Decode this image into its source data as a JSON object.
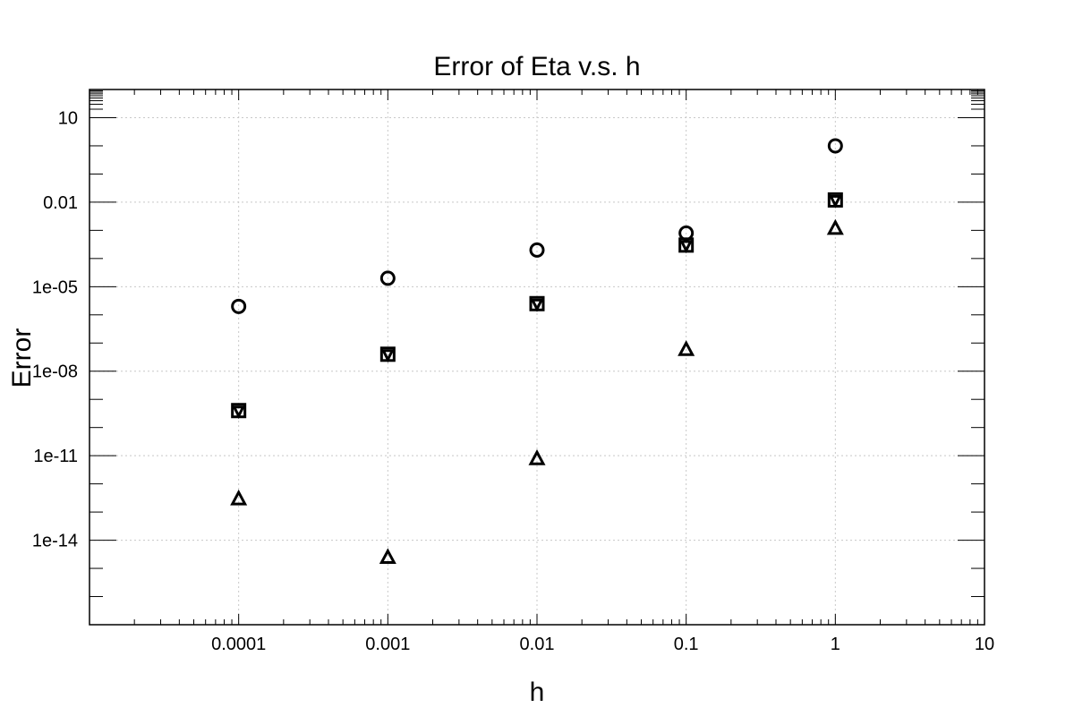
{
  "chart_data": {
    "type": "scatter",
    "title": "Error of Eta v.s. h",
    "xlabel": "h",
    "ylabel": "Error",
    "x_scale": "log",
    "y_scale": "log",
    "xlim": [
      1e-05,
      10
    ],
    "ylim": [
      1e-17,
      100
    ],
    "x_ticks": [
      {
        "value": 0.0001,
        "label": "0.0001"
      },
      {
        "value": 0.001,
        "label": "0.001"
      },
      {
        "value": 0.01,
        "label": "0.01"
      },
      {
        "value": 0.1,
        "label": "0.1"
      },
      {
        "value": 1,
        "label": "1"
      },
      {
        "value": 10,
        "label": "10"
      }
    ],
    "y_ticks": [
      {
        "value": 10,
        "label": "10"
      },
      {
        "value": 0.01,
        "label": "0.01"
      },
      {
        "value": 1e-05,
        "label": "1e-05"
      },
      {
        "value": 1e-08,
        "label": "1e-08"
      },
      {
        "value": 1e-11,
        "label": "1e-11"
      },
      {
        "value": 1e-14,
        "label": "1e-14"
      }
    ],
    "grid": true,
    "x": [
      0.0001,
      0.001,
      0.01,
      0.1,
      1
    ],
    "series": [
      {
        "marker": "circle",
        "values": [
          2e-06,
          2e-05,
          0.0002,
          0.0008,
          1
        ]
      },
      {
        "marker": "square",
        "values": [
          4e-10,
          4e-08,
          2.5e-06,
          0.0003,
          0.012
        ]
      },
      {
        "marker": "triangle-down",
        "values": [
          4e-10,
          4e-08,
          2.5e-06,
          0.0003,
          0.012
        ]
      },
      {
        "marker": "triangle-up",
        "values": [
          3e-13,
          2.5e-15,
          8e-12,
          6e-08,
          0.0012
        ]
      }
    ]
  }
}
